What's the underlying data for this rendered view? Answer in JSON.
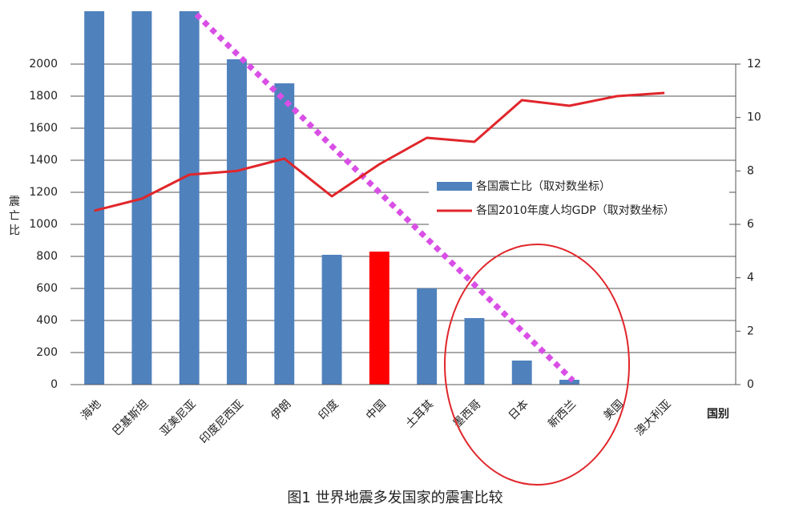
{
  "chart_data": {
    "type": "bar",
    "title": "图1 世界地震多发国家的震害比较",
    "y_label": "震亡比",
    "x_label": "国别",
    "categories": [
      "海地",
      "巴基斯坦",
      "亚美尼亚",
      "印度尼西亚",
      "伊朗",
      "印度",
      "中国",
      "土耳其",
      "墨西哥",
      "日本",
      "新西兰",
      "美国",
      "澳大利亚"
    ],
    "series": [
      {
        "name": "各国震亡比（取对数坐标）",
        "type": "bar",
        "color": "#4f81bd",
        "bar_colors": [
          "#4f81bd",
          "#4f81bd",
          "#4f81bd",
          "#4f81bd",
          "#4f81bd",
          "#4f81bd",
          "#ff0000",
          "#4f81bd",
          "#4f81bd",
          "#4f81bd",
          "#4f81bd",
          "#4f81bd",
          "#4f81bd"
        ],
        "values": [
          2330,
          2330,
          2330,
          2030,
          1880,
          810,
          830,
          600,
          415,
          150,
          30,
          null,
          null
        ]
      },
      {
        "name": "各国2010年度人均GDP（取对数坐标）",
        "type": "line",
        "color": "#e0262b",
        "axis": "y2",
        "values": [
          6.51,
          6.96,
          7.86,
          8.0,
          8.46,
          7.05,
          8.25,
          9.24,
          9.09,
          10.65,
          10.44,
          10.8,
          10.92
        ]
      }
    ],
    "ylim": [
      0,
      2330
    ],
    "yticks": [
      0,
      200,
      400,
      600,
      800,
      1000,
      1200,
      1400,
      1600,
      1800,
      2000
    ],
    "y2lim": [
      0,
      13.98
    ],
    "y2ticks": [
      0,
      2,
      4,
      6,
      8,
      10,
      12
    ],
    "grid": true
  }
}
